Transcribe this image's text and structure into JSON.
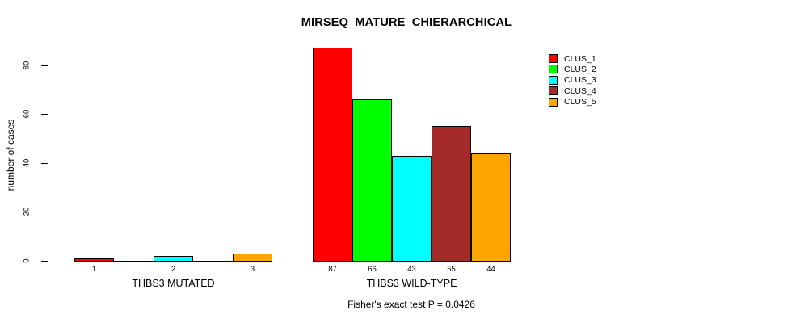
{
  "chart_data": {
    "type": "bar",
    "title": "MIRSEQ_MATURE_CHIERARCHICAL",
    "ylabel": "number of cases",
    "xlabel": "",
    "yticks": [
      0,
      20,
      40,
      60,
      80
    ],
    "ylim": [
      0,
      87
    ],
    "grid": false,
    "legend_position": "top-right",
    "bar_border_color": "#000000",
    "clusters": [
      {
        "name": "CLUS_1",
        "color": "#ff0000"
      },
      {
        "name": "CLUS_2",
        "color": "#00ff00"
      },
      {
        "name": "CLUS_3",
        "color": "#00ffff"
      },
      {
        "name": "CLUS_4",
        "color": "#a52a2a"
      },
      {
        "name": "CLUS_5",
        "color": "#ffa500"
      }
    ],
    "groups": [
      {
        "label": "THBS3 MUTATED",
        "values": [
          1,
          0,
          2,
          0,
          3
        ],
        "bar_labels": [
          "1",
          "",
          "2",
          "",
          "3"
        ]
      },
      {
        "label": "THBS3 WILD-TYPE",
        "values": [
          87,
          66,
          43,
          55,
          44
        ],
        "bar_labels": [
          "87",
          "66",
          "43",
          "55",
          "44"
        ]
      }
    ],
    "annotation": "Fisher's exact test P = 0.0426"
  }
}
